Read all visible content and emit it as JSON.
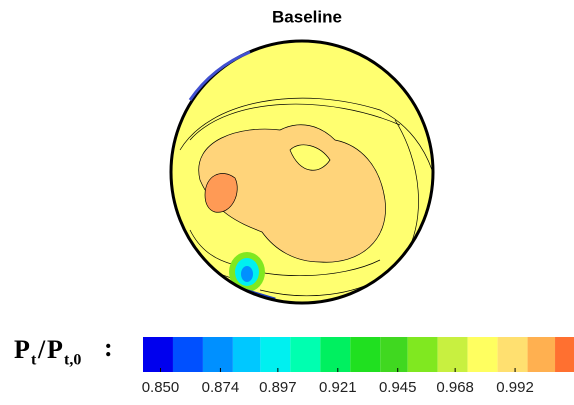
{
  "chart_data": {
    "type": "contour",
    "title": "Baseline",
    "colorbar_label": {
      "numerator": {
        "symbol": "P",
        "subscript": "t"
      },
      "divider": "/",
      "denominator": {
        "symbol": "P",
        "subscript": "t,0"
      },
      "separator": ":"
    },
    "levels": [
      0.843,
      0.855,
      0.867,
      0.879,
      0.89,
      0.902,
      0.914,
      0.926,
      0.938,
      0.949,
      0.961,
      0.973,
      0.985,
      0.997,
      1.008,
      1.02
    ],
    "colors": [
      "#0000ee",
      "#0050ff",
      "#0090ff",
      "#00c8ff",
      "#00f0f0",
      "#00ffb0",
      "#00f060",
      "#20e020",
      "#40d820",
      "#80e820",
      "#c8f040",
      "#ffff60",
      "#ffe070",
      "#ffb050",
      "#ff7030"
    ],
    "clim": [
      0.843,
      1.02
    ],
    "cticks": [
      {
        "value": 0.85,
        "label": "0.850"
      },
      0.874,
      0.897,
      0.921,
      0.945,
      0.968,
      0.992
    ]
  }
}
